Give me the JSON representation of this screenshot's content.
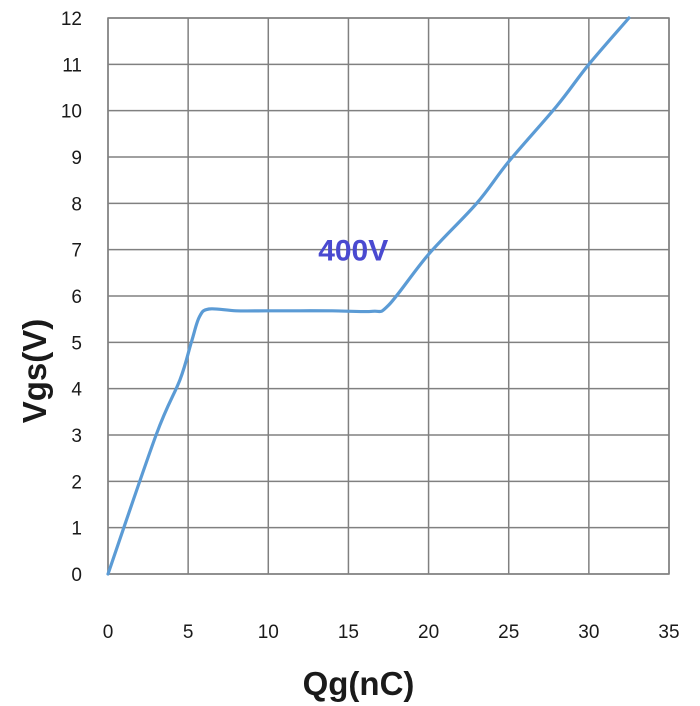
{
  "chart_data": {
    "type": "line",
    "title": "",
    "xlabel": "Qg(nC)",
    "ylabel": "Vgs(V)",
    "xlim": [
      0,
      35
    ],
    "ylim": [
      0,
      12
    ],
    "x_ticks": [
      "0",
      "5",
      "10",
      "15",
      "20",
      "25",
      "30",
      "35"
    ],
    "y_ticks": [
      "0",
      "1",
      "2",
      "3",
      "4",
      "5",
      "6",
      "7",
      "8",
      "9",
      "10",
      "11",
      "12"
    ],
    "grid": true,
    "series": [
      {
        "color": "#5b9bd5",
        "x": [
          0,
          3,
          4.5,
          5.2,
          5.7,
          6.3,
          8,
          10,
          12,
          14,
          16.5,
          17.5,
          20,
          23,
          25,
          28,
          30,
          32.5
        ],
        "y": [
          0,
          3,
          4.2,
          5.0,
          5.55,
          5.72,
          5.68,
          5.68,
          5.68,
          5.68,
          5.67,
          5.8,
          6.9,
          8.0,
          8.9,
          10.1,
          11.0,
          12.0
        ]
      }
    ],
    "annotations": [
      {
        "text": "400V",
        "x": 15.3,
        "y": 7,
        "color": "#4a4ad0"
      }
    ]
  }
}
